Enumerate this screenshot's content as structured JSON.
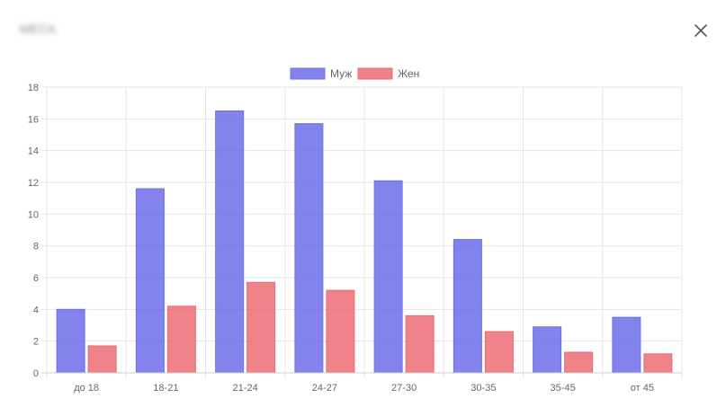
{
  "modal": {
    "title": "МЕСА",
    "close_icon": "close-icon"
  },
  "colors": {
    "male_fill": "rgba(96,96,232,0.78)",
    "male_border": "#6e6ee6",
    "female_fill": "rgba(234,96,104,0.78)",
    "female_border": "#e96a72",
    "grid": "#e6e6e6",
    "axis_text": "#666666"
  },
  "chart_data": {
    "type": "bar",
    "title": "",
    "xlabel": "",
    "ylabel": "",
    "categories": [
      "до 18",
      "18-21",
      "21-24",
      "24-27",
      "27-30",
      "30-35",
      "35-45",
      "от 45"
    ],
    "series": [
      {
        "name": "Муж",
        "values": [
          4.0,
          11.6,
          16.5,
          15.7,
          12.1,
          8.4,
          2.9,
          3.5
        ]
      },
      {
        "name": "Жен",
        "values": [
          1.7,
          4.2,
          5.7,
          5.2,
          3.6,
          2.6,
          1.3,
          1.2
        ]
      }
    ],
    "ylim": [
      0,
      18
    ],
    "yticks": [
      0,
      2,
      4,
      6,
      8,
      10,
      12,
      14,
      16,
      18
    ],
    "grid": true,
    "legend_position": "top-center"
  }
}
